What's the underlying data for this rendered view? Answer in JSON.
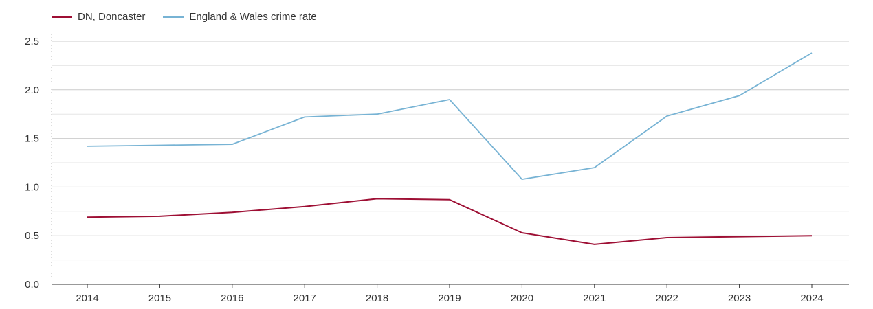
{
  "chart_data": {
    "type": "line",
    "title": "",
    "xlabel": "",
    "ylabel": "",
    "x": [
      "2014",
      "2015",
      "2016",
      "2017",
      "2018",
      "2019",
      "2020",
      "2021",
      "2022",
      "2023",
      "2024"
    ],
    "ylim": [
      0,
      2.5
    ],
    "yticks": [
      "0.0",
      "0.5",
      "1.0",
      "1.5",
      "2.0",
      "2.5"
    ],
    "grid": true,
    "legend_position": "top-left",
    "series": [
      {
        "name": "DN, Doncaster",
        "color": "#9e0f34",
        "values": [
          0.69,
          0.7,
          0.74,
          0.8,
          0.88,
          0.87,
          0.53,
          0.41,
          0.48,
          0.49,
          0.5
        ]
      },
      {
        "name": "England & Wales crime rate",
        "color": "#77b3d4",
        "values": [
          1.42,
          1.43,
          1.44,
          1.72,
          1.75,
          1.9,
          1.08,
          1.2,
          1.73,
          1.94,
          2.38
        ]
      }
    ]
  }
}
